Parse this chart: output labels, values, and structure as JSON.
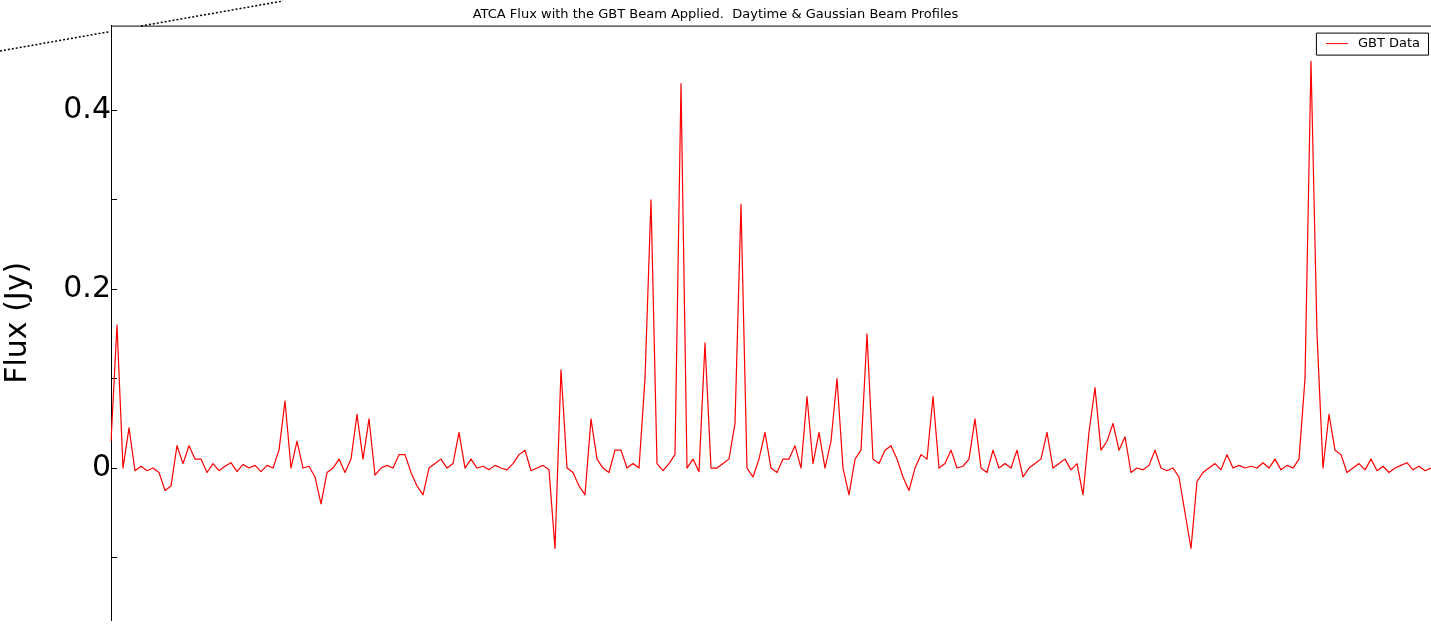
{
  "chart_data": {
    "type": "line",
    "title": "ATCA Flux with the GBT Beam Applied.  Daytime & Gaussian Beam Profiles",
    "ylabel": "Flux (Jy)",
    "categories": [
      null,
      null,
      null,
      null,
      null,
      null,
      null,
      null,
      null,
      null,
      null,
      null,
      null,
      null,
      null,
      null,
      null,
      null,
      null,
      null,
      null,
      null,
      null,
      null,
      null,
      null,
      null,
      null,
      null,
      null,
      null,
      null,
      null,
      null,
      null,
      null,
      null,
      null,
      null,
      null,
      null,
      null,
      null,
      null,
      null,
      null,
      null,
      null,
      null,
      null,
      null,
      null,
      null,
      null,
      null,
      null,
      null,
      null,
      null,
      null,
      null,
      null,
      null,
      null,
      null,
      null,
      null,
      null,
      null,
      null,
      null,
      null,
      null,
      null,
      null,
      null,
      null,
      null,
      null,
      null,
      null,
      null,
      null,
      null,
      null,
      null,
      null,
      null,
      null,
      null,
      null,
      null,
      null,
      null,
      null,
      null,
      null,
      null,
      null,
      null,
      null,
      null,
      null,
      null,
      null,
      null,
      null,
      null,
      null,
      null,
      null,
      null,
      null,
      null,
      null,
      null,
      null,
      null,
      null,
      null,
      null,
      null,
      null,
      null,
      null,
      null,
      null,
      null,
      null,
      null,
      null,
      null,
      null,
      null,
      null,
      null,
      null,
      null,
      null,
      null,
      null,
      null,
      null,
      null,
      null,
      null,
      null,
      null,
      null,
      null,
      null,
      null,
      null,
      null,
      null,
      null,
      null,
      null,
      null,
      null,
      null,
      null,
      null,
      null,
      null,
      null,
      null,
      null,
      null,
      null,
      null,
      null,
      null,
      null,
      null,
      null,
      null,
      null,
      null,
      null,
      null,
      null,
      null,
      null,
      null,
      null,
      null,
      null,
      null,
      null,
      null,
      null,
      null,
      null,
      null,
      null,
      null,
      null,
      null,
      null,
      null,
      null,
      null,
      null,
      null,
      null,
      null,
      null,
      null,
      null,
      null,
      null,
      null,
      null,
      null,
      null,
      null,
      null,
      null,
      null,
      null
    ],
    "series": [
      {
        "name": "GBT Data",
        "color": "#ff0000",
        "values": [
          0.03,
          0.16,
          0.0,
          0.045,
          -0.003,
          0.002,
          -0.003,
          0.0,
          -0.005,
          -0.025,
          -0.02,
          0.025,
          0.005,
          0.025,
          0.01,
          0.01,
          -0.005,
          0.005,
          -0.003,
          0.002,
          0.006,
          -0.004,
          0.004,
          0.0,
          0.003,
          -0.004,
          0.003,
          0.0,
          0.02,
          0.075,
          0.0,
          0.03,
          0.0,
          0.002,
          -0.01,
          -0.04,
          -0.005,
          0.0,
          0.01,
          -0.005,
          0.01,
          0.06,
          0.01,
          0.055,
          -0.008,
          0.0,
          0.003,
          0.0,
          0.015,
          0.015,
          -0.005,
          -0.02,
          -0.03,
          0.0,
          0.005,
          0.01,
          0.0,
          0.005,
          0.04,
          0.0,
          0.01,
          0.0,
          0.002,
          -0.002,
          0.003,
          0.0,
          -0.002,
          0.005,
          0.015,
          0.02,
          -0.003,
          0.0,
          0.003,
          -0.002,
          -0.09,
          0.11,
          0.0,
          -0.005,
          -0.02,
          -0.03,
          0.055,
          0.01,
          0.0,
          -0.005,
          0.02,
          0.02,
          0.0,
          0.005,
          0.0,
          0.1,
          0.3,
          0.005,
          -0.003,
          0.005,
          0.015,
          0.43,
          0.0,
          0.01,
          -0.004,
          0.14,
          0.0,
          0.0,
          0.005,
          0.01,
          0.05,
          0.295,
          0.0,
          -0.01,
          0.01,
          0.04,
          0.0,
          -0.005,
          0.01,
          0.01,
          0.025,
          0.0,
          0.08,
          0.005,
          0.04,
          0.0,
          0.03,
          0.1,
          0.0,
          -0.03,
          0.01,
          0.02,
          0.15,
          0.01,
          0.005,
          0.02,
          0.025,
          0.01,
          -0.01,
          -0.025,
          0.0,
          0.015,
          0.01,
          0.08,
          0.0,
          0.005,
          0.02,
          0.0,
          0.002,
          0.01,
          0.055,
          0.0,
          -0.005,
          0.02,
          0.0,
          0.005,
          0.0,
          0.02,
          -0.01,
          0.0,
          0.005,
          0.01,
          0.04,
          0.0,
          0.005,
          0.01,
          -0.002,
          0.005,
          -0.03,
          0.04,
          0.09,
          0.02,
          0.03,
          0.05,
          0.02,
          0.035,
          -0.005,
          0.0,
          -0.002,
          0.003,
          0.02,
          0.0,
          -0.003,
          0.0,
          -0.01,
          -0.05,
          -0.09,
          -0.015,
          -0.005,
          0.0,
          0.005,
          -0.002,
          0.015,
          0.0,
          0.003,
          0.0,
          0.002,
          0.0,
          0.006,
          0.0,
          0.01,
          -0.002,
          0.003,
          0.0,
          0.01,
          0.1,
          0.455,
          0.15,
          0.0,
          0.06,
          0.02,
          0.015,
          -0.005,
          0.0,
          0.005,
          -0.002,
          0.01,
          -0.003,
          0.002,
          -0.005,
          0.0,
          0.003,
          0.006,
          -0.002,
          0.002,
          -0.003,
          0.0
        ]
      }
    ],
    "ylim": [
      -0.17,
      0.495
    ],
    "yticks": [
      {
        "value": -0.1,
        "label": null
      },
      0,
      {
        "value": 0.1,
        "label": null
      },
      0.2,
      {
        "value": 0.3,
        "label": null
      },
      0.4
    ],
    "tick_labels": "y",
    "legend": "top right",
    "marker": "none",
    "line_style": "solid"
  }
}
